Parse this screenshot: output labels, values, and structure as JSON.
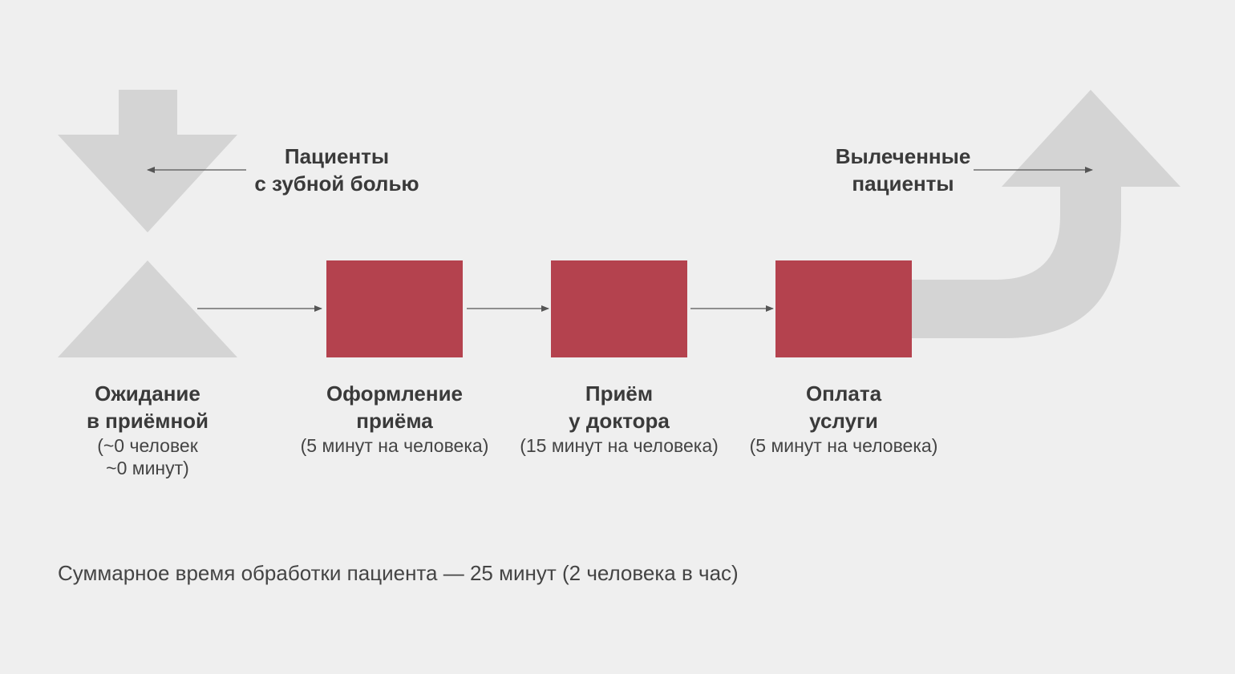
{
  "colors": {
    "background": "#efefef",
    "shape_gray": "#d4d4d4",
    "box_red": "#b4424e",
    "arrow_line": "#555555",
    "text": "#3c3c3c"
  },
  "input": {
    "title_line1": "Пациенты",
    "title_line2": "с зубной болью",
    "shape": "down-arrow-icon"
  },
  "output": {
    "title_line1": "Вылеченные",
    "title_line2": "пациенты",
    "shape": "curved-up-arrow-icon"
  },
  "stages": [
    {
      "id": "waiting",
      "shape": "inventory-triangle-icon",
      "title_line1": "Ожидание",
      "title_line2": "в приёмной",
      "note_line1": "(~0 человек",
      "note_line2": "~0 минут)"
    },
    {
      "id": "registration",
      "shape": "process-box",
      "title_line1": "Оформление",
      "title_line2": "приёма",
      "note_line1": "(5 минут на человека)"
    },
    {
      "id": "doctor",
      "shape": "process-box",
      "title_line1": "Приём",
      "title_line2": "у доктора",
      "note_line1": "(15 минут на человека)"
    },
    {
      "id": "payment",
      "shape": "process-box",
      "title_line1": "Оплата",
      "title_line2": "услуги",
      "note_line1": "(5 минут на человека)"
    }
  ],
  "summary": "Суммарное время обработки пациента — 25 минут (2 человека в час)"
}
